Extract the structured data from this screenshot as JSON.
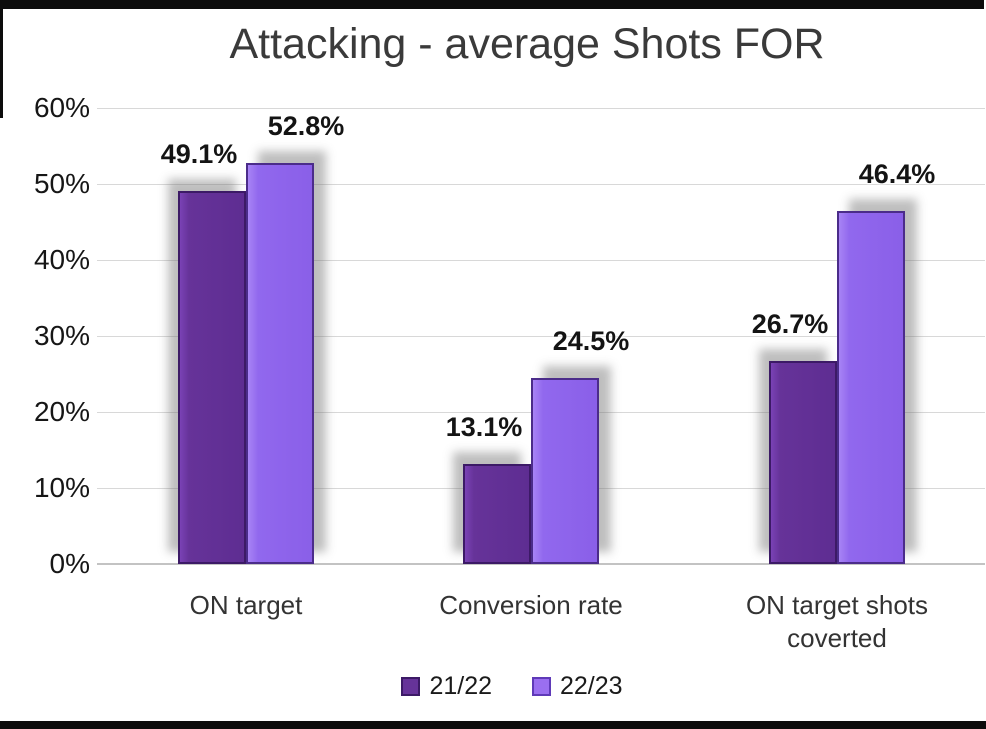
{
  "title": "Attacking - average Shots FOR",
  "chart_data": {
    "type": "bar",
    "title": "Attacking - average Shots FOR",
    "categories": [
      "ON target",
      "Conversion rate",
      "ON target shots coverted"
    ],
    "series": [
      {
        "name": "21/22",
        "color": "#663399",
        "values": [
          49.1,
          13.1,
          26.7
        ],
        "value_labels": [
          "49.1%",
          "13.1%",
          "26.7%"
        ]
      },
      {
        "name": "22/23",
        "color": "#9168ee",
        "values": [
          52.8,
          24.5,
          46.4
        ],
        "value_labels": [
          "52.8%",
          "24.5%",
          "46.4%"
        ]
      }
    ],
    "xlabel": "",
    "ylabel": "",
    "ylim": [
      0,
      60
    ],
    "yticks": [
      {
        "value": 60,
        "label": "60%"
      },
      {
        "value": 50,
        "label": "50%"
      },
      {
        "value": 40,
        "label": "40%"
      },
      {
        "value": 30,
        "label": "30%"
      },
      {
        "value": 20,
        "label": "20%"
      },
      {
        "value": 10,
        "label": "10%"
      },
      {
        "value": 0,
        "label": "0%"
      }
    ],
    "grid": true,
    "legend_position": "bottom"
  }
}
